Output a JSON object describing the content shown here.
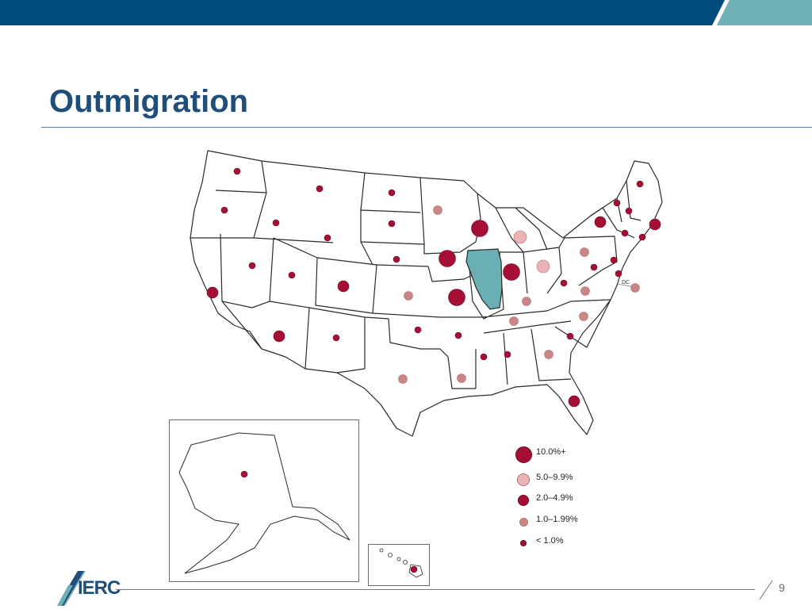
{
  "slide": {
    "title": "Outmigration",
    "page_number": "9",
    "logo_text": "IERC"
  },
  "colors": {
    "header_blue": "#004b7d",
    "header_teal": "#6fb0b6",
    "title_blue": "#1f4e79",
    "illinois_fill": "#6aafb3",
    "dot_dark": "#a50f35",
    "dot_light": "#e8b4b6",
    "dot_mid": "#c98684"
  },
  "map": {
    "highlighted_state": "Illinois",
    "dc_label": "DC",
    "categories": {
      "c10": {
        "label": "10.0%+",
        "color": "#a50f35"
      },
      "c5": {
        "label": "5.0–9.9%",
        "color": "#e8b4b6"
      },
      "c2": {
        "label": "2.0–4.9%",
        "color": "#a50f35"
      },
      "c1": {
        "label": "1.0–1.99%",
        "color": "#c98684"
      },
      "c0": {
        "label": "< 1.0%",
        "color": "#a50f35"
      }
    },
    "legend_order": [
      "c10",
      "c5",
      "c2",
      "c1",
      "c0"
    ],
    "states": [
      {
        "state": "WA",
        "category": "c0"
      },
      {
        "state": "OR",
        "category": "c0"
      },
      {
        "state": "CA",
        "category": "c2"
      },
      {
        "state": "ID",
        "category": "c0"
      },
      {
        "state": "NV",
        "category": "c0"
      },
      {
        "state": "MT",
        "category": "c0"
      },
      {
        "state": "WY",
        "category": "c0"
      },
      {
        "state": "UT",
        "category": "c0"
      },
      {
        "state": "AZ",
        "category": "c2"
      },
      {
        "state": "CO",
        "category": "c2"
      },
      {
        "state": "NM",
        "category": "c0"
      },
      {
        "state": "ND",
        "category": "c0"
      },
      {
        "state": "SD",
        "category": "c0"
      },
      {
        "state": "NE",
        "category": "c0"
      },
      {
        "state": "KS",
        "category": "c1"
      },
      {
        "state": "OK",
        "category": "c0"
      },
      {
        "state": "TX",
        "category": "c1"
      },
      {
        "state": "MN",
        "category": "c1"
      },
      {
        "state": "IA",
        "category": "c10"
      },
      {
        "state": "MO",
        "category": "c10"
      },
      {
        "state": "AR",
        "category": "c0"
      },
      {
        "state": "LA",
        "category": "c1"
      },
      {
        "state": "WI",
        "category": "c10"
      },
      {
        "state": "MI",
        "category": "c5"
      },
      {
        "state": "IN",
        "category": "c10"
      },
      {
        "state": "OH",
        "category": "c5"
      },
      {
        "state": "KY",
        "category": "c1"
      },
      {
        "state": "TN",
        "category": "c1"
      },
      {
        "state": "MS",
        "category": "c0"
      },
      {
        "state": "AL",
        "category": "c0"
      },
      {
        "state": "GA",
        "category": "c1"
      },
      {
        "state": "FL",
        "category": "c2"
      },
      {
        "state": "SC",
        "category": "c0"
      },
      {
        "state": "NC",
        "category": "c1"
      },
      {
        "state": "VA",
        "category": "c1"
      },
      {
        "state": "WV",
        "category": "c0"
      },
      {
        "state": "PA",
        "category": "c1"
      },
      {
        "state": "NY",
        "category": "c2"
      },
      {
        "state": "VT",
        "category": "c0"
      },
      {
        "state": "NH",
        "category": "c0"
      },
      {
        "state": "ME",
        "category": "c0"
      },
      {
        "state": "MA",
        "category": "c2"
      },
      {
        "state": "CT",
        "category": "c0"
      },
      {
        "state": "RI",
        "category": "c0"
      },
      {
        "state": "NJ",
        "category": "c0"
      },
      {
        "state": "DE",
        "category": "c0"
      },
      {
        "state": "MD",
        "category": "c0"
      },
      {
        "state": "DC",
        "category": "c1"
      },
      {
        "state": "AK",
        "category": "c0"
      },
      {
        "state": "HI",
        "category": "c0"
      }
    ]
  }
}
